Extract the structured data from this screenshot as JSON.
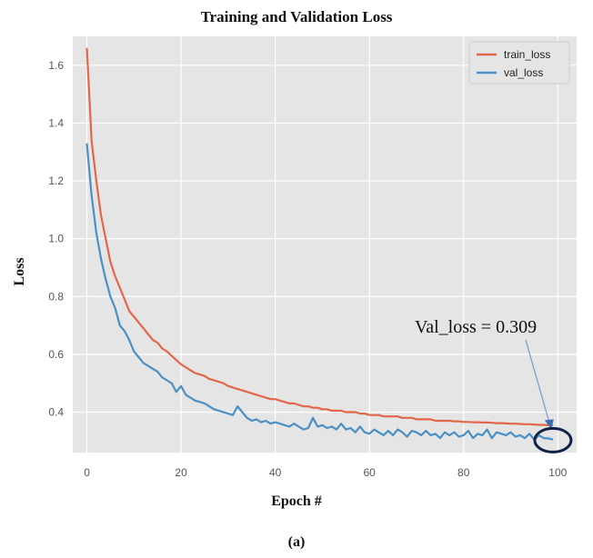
{
  "chart_data": {
    "type": "line",
    "title": "Training and Validation Loss",
    "xlabel": "Epoch #",
    "ylabel": "Loss",
    "caption": "(a)",
    "xlim": [
      -3,
      104
    ],
    "ylim": [
      0.26,
      1.7
    ],
    "xticks": [
      0,
      20,
      40,
      60,
      80,
      100
    ],
    "yticks": [
      0.4,
      0.6,
      0.8,
      1.0,
      1.2,
      1.4,
      1.6
    ],
    "ytick_labels": [
      "0.4",
      "0.6",
      "0.8",
      "1.0",
      "1.2",
      "1.4",
      "1.6"
    ],
    "grid": true,
    "legend_position": "top-right",
    "annotation": {
      "text": "Val_loss = 0.309",
      "point": [
        98,
        0.309
      ]
    },
    "series": [
      {
        "name": "train_loss",
        "color": "#e2674a",
        "values": [
          1.66,
          1.34,
          1.2,
          1.08,
          1.0,
          0.92,
          0.87,
          0.83,
          0.79,
          0.75,
          0.73,
          0.71,
          0.69,
          0.67,
          0.65,
          0.64,
          0.62,
          0.61,
          0.595,
          0.58,
          0.565,
          0.555,
          0.545,
          0.535,
          0.53,
          0.525,
          0.515,
          0.51,
          0.505,
          0.5,
          0.49,
          0.485,
          0.48,
          0.475,
          0.47,
          0.465,
          0.46,
          0.455,
          0.45,
          0.445,
          0.445,
          0.44,
          0.435,
          0.43,
          0.43,
          0.425,
          0.42,
          0.42,
          0.415,
          0.415,
          0.41,
          0.41,
          0.405,
          0.405,
          0.405,
          0.4,
          0.4,
          0.4,
          0.395,
          0.395,
          0.39,
          0.39,
          0.39,
          0.385,
          0.385,
          0.385,
          0.385,
          0.38,
          0.38,
          0.38,
          0.375,
          0.375,
          0.375,
          0.375,
          0.37,
          0.37,
          0.37,
          0.37,
          0.368,
          0.368,
          0.366,
          0.366,
          0.365,
          0.365,
          0.364,
          0.364,
          0.363,
          0.362,
          0.362,
          0.361,
          0.36,
          0.36,
          0.359,
          0.358,
          0.358,
          0.357,
          0.356,
          0.356,
          0.355,
          0.355
        ]
      },
      {
        "name": "val_loss",
        "color": "#4a90c4",
        "values": [
          1.33,
          1.15,
          1.02,
          0.93,
          0.86,
          0.8,
          0.76,
          0.7,
          0.68,
          0.65,
          0.61,
          0.59,
          0.57,
          0.56,
          0.55,
          0.54,
          0.52,
          0.51,
          0.5,
          0.47,
          0.49,
          0.46,
          0.45,
          0.44,
          0.435,
          0.43,
          0.42,
          0.41,
          0.405,
          0.4,
          0.395,
          0.39,
          0.42,
          0.4,
          0.38,
          0.37,
          0.375,
          0.365,
          0.37,
          0.36,
          0.365,
          0.36,
          0.355,
          0.35,
          0.36,
          0.35,
          0.34,
          0.345,
          0.38,
          0.35,
          0.355,
          0.345,
          0.35,
          0.34,
          0.36,
          0.34,
          0.345,
          0.33,
          0.35,
          0.33,
          0.325,
          0.34,
          0.33,
          0.32,
          0.335,
          0.32,
          0.34,
          0.33,
          0.315,
          0.335,
          0.33,
          0.32,
          0.335,
          0.32,
          0.325,
          0.31,
          0.33,
          0.32,
          0.33,
          0.315,
          0.32,
          0.335,
          0.31,
          0.325,
          0.32,
          0.34,
          0.31,
          0.33,
          0.325,
          0.32,
          0.33,
          0.315,
          0.32,
          0.31,
          0.325,
          0.305,
          0.32,
          0.31,
          0.309,
          0.305
        ]
      }
    ]
  }
}
